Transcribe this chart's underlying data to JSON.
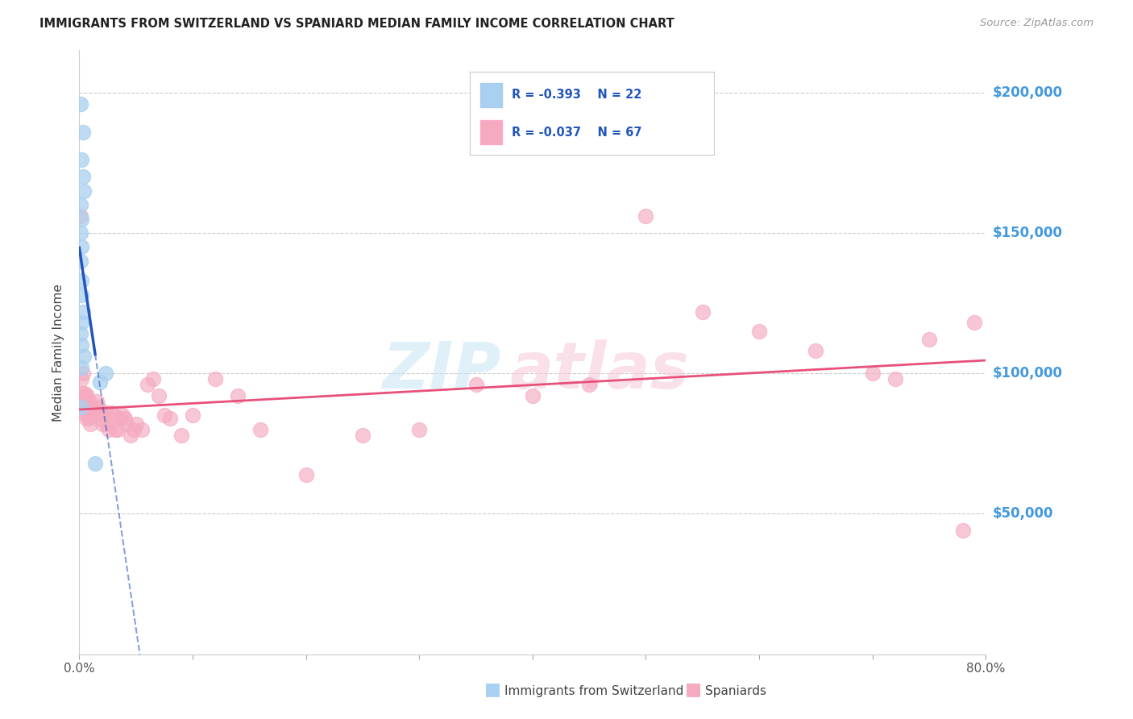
{
  "title": "IMMIGRANTS FROM SWITZERLAND VS SPANIARD MEDIAN FAMILY INCOME CORRELATION CHART",
  "source": "Source: ZipAtlas.com",
  "ylabel": "Median Family Income",
  "ytick_labels": [
    "$50,000",
    "$100,000",
    "$150,000",
    "$200,000"
  ],
  "ytick_values": [
    50000,
    100000,
    150000,
    200000
  ],
  "ymin": 0,
  "ymax": 215000,
  "xmin": 0.0,
  "xmax": 0.8,
  "legend_r1": "R = -0.393",
  "legend_n1": "N = 22",
  "legend_r2": "R = -0.037",
  "legend_n2": "N = 67",
  "legend_label1": "Immigrants from Switzerland",
  "legend_label2": "Spaniards",
  "color_blue": "#A8D0F0",
  "color_pink": "#F5AABF",
  "color_blue_line": "#2255BB",
  "color_pink_line": "#E8507A",
  "color_ytick": "#4499DD",
  "background": "#FFFFFF",
  "swiss_x": [
    0.001,
    0.003,
    0.002,
    0.003,
    0.004,
    0.001,
    0.002,
    0.001,
    0.002,
    0.001,
    0.002,
    0.002,
    0.003,
    0.002,
    0.001,
    0.002,
    0.004,
    0.002,
    0.001,
    0.014,
    0.018,
    0.023
  ],
  "swiss_y": [
    196000,
    186000,
    176000,
    170000,
    165000,
    160000,
    155000,
    150000,
    145000,
    140000,
    133000,
    128000,
    122000,
    118000,
    114000,
    110000,
    106000,
    102000,
    88000,
    68000,
    97000,
    100000
  ],
  "spain_x": [
    0.001,
    0.002,
    0.003,
    0.003,
    0.004,
    0.004,
    0.005,
    0.005,
    0.006,
    0.006,
    0.007,
    0.008,
    0.008,
    0.009,
    0.01,
    0.01,
    0.011,
    0.012,
    0.013,
    0.014,
    0.015,
    0.016,
    0.017,
    0.018,
    0.019,
    0.02,
    0.022,
    0.023,
    0.024,
    0.026,
    0.028,
    0.03,
    0.032,
    0.034,
    0.036,
    0.038,
    0.04,
    0.042,
    0.045,
    0.048,
    0.05,
    0.055,
    0.06,
    0.065,
    0.07,
    0.075,
    0.08,
    0.09,
    0.1,
    0.12,
    0.14,
    0.16,
    0.2,
    0.25,
    0.3,
    0.35,
    0.4,
    0.45,
    0.5,
    0.55,
    0.6,
    0.65,
    0.7,
    0.72,
    0.75,
    0.78,
    0.79
  ],
  "spain_y": [
    156000,
    98000,
    100000,
    93000,
    92000,
    88000,
    93000,
    86000,
    90000,
    84000,
    92000,
    88000,
    84000,
    90000,
    88000,
    82000,
    88000,
    85000,
    86000,
    86000,
    90000,
    86000,
    88000,
    86000,
    84000,
    82000,
    86000,
    86000,
    82000,
    80000,
    86000,
    85000,
    80000,
    80000,
    84000,
    85000,
    84000,
    82000,
    78000,
    80000,
    82000,
    80000,
    96000,
    98000,
    92000,
    85000,
    84000,
    78000,
    85000,
    98000,
    92000,
    80000,
    64000,
    78000,
    80000,
    96000,
    92000,
    96000,
    156000,
    122000,
    115000,
    108000,
    100000,
    98000,
    112000,
    44000,
    118000
  ]
}
